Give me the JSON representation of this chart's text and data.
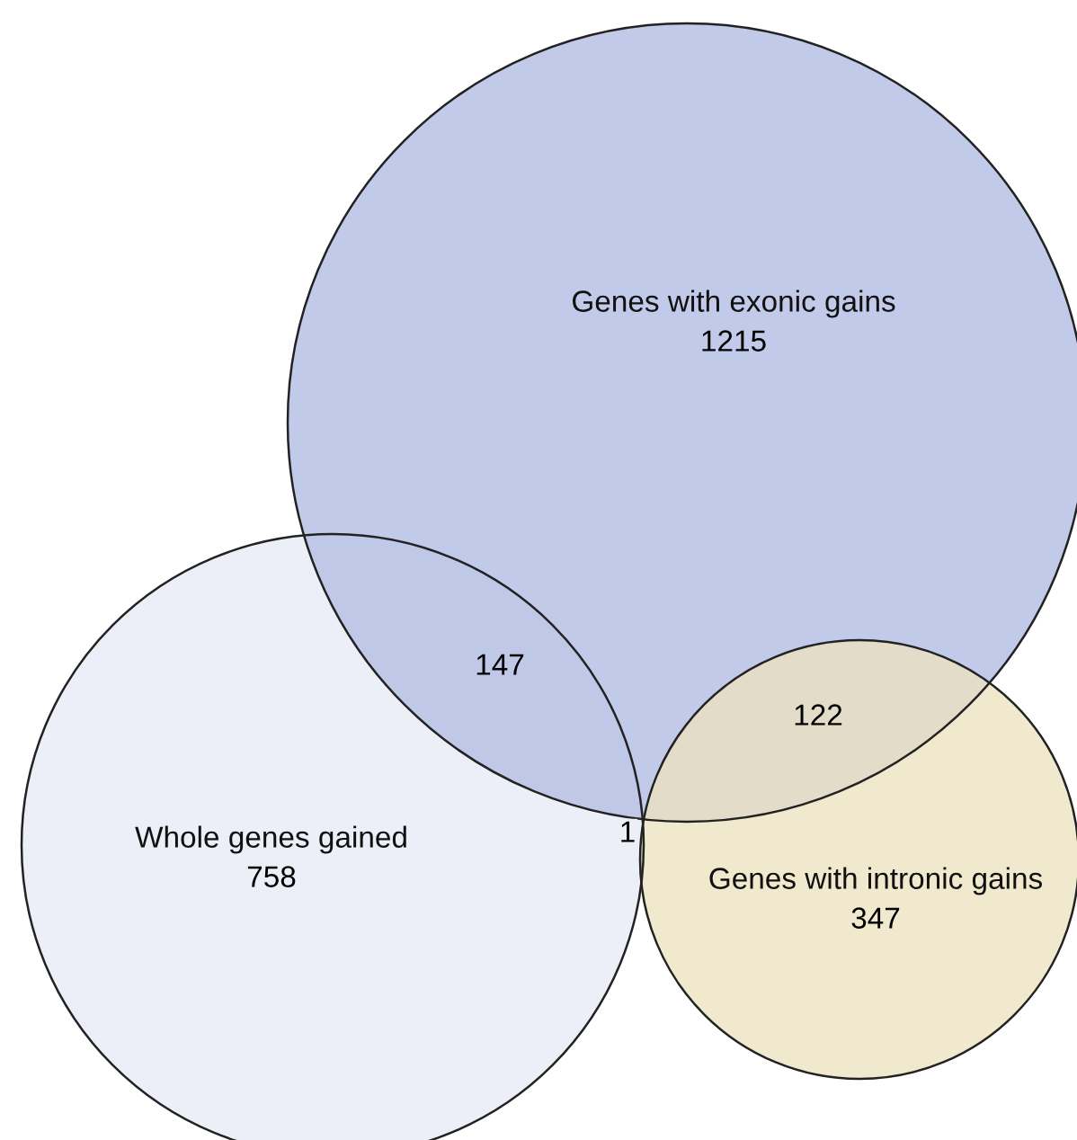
{
  "chart_data": {
    "type": "other",
    "categories": [
      "Genes with exonic gains",
      "Whole genes gained",
      "Genes with intronic gains"
    ],
    "values": [
      1215,
      758,
      347
    ],
    "colors": [
      "#b9c3e6",
      "#eceff7",
      "#ece2bc"
    ],
    "annotations": [
      "147",
      "122",
      "1"
    ],
    "data_labels": true
  }
}
